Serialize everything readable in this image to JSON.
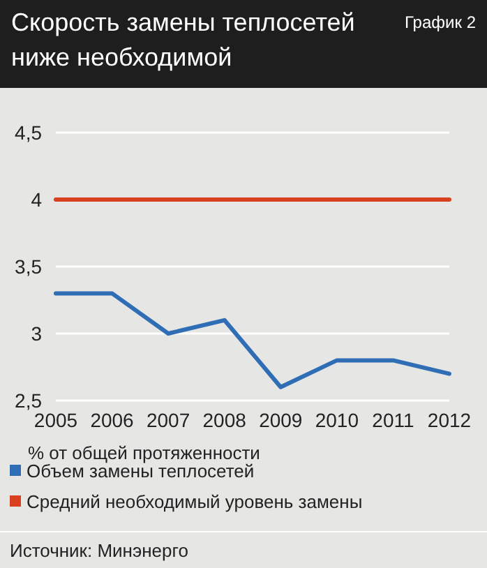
{
  "chart_data": {
    "type": "line",
    "title": "Скорость замены теплосетей ниже необходимой",
    "subtitle": "График 2",
    "ylabel": "% от общей протяженности",
    "annotations": [
      "Источник: Минэнерго"
    ],
    "categories": [
      "2005",
      "2006",
      "2007",
      "2008",
      "2009",
      "2010",
      "2011",
      "2012"
    ],
    "series": [
      {
        "name": "Объем замены теплосетей",
        "color": "#2f6db5",
        "values": [
          3.3,
          3.3,
          3.0,
          3.1,
          2.6,
          2.8,
          2.8,
          2.7
        ]
      },
      {
        "name": "Средний необходимый уровень замены",
        "color": "#d8401e",
        "values": [
          4,
          4,
          4,
          4,
          4,
          4,
          4,
          4
        ]
      }
    ],
    "ylim": [
      2.5,
      4.5
    ],
    "yticks": [
      {
        "value": 2.5,
        "label": "2,5"
      },
      {
        "value": 3,
        "label": "3"
      },
      {
        "value": 3.5,
        "label": "3,5"
      },
      {
        "value": 4,
        "label": "4"
      },
      {
        "value": 4.5,
        "label": "4,5"
      }
    ],
    "grid": "y",
    "legend": "bottom",
    "marker": "none",
    "line_style": "solid"
  }
}
